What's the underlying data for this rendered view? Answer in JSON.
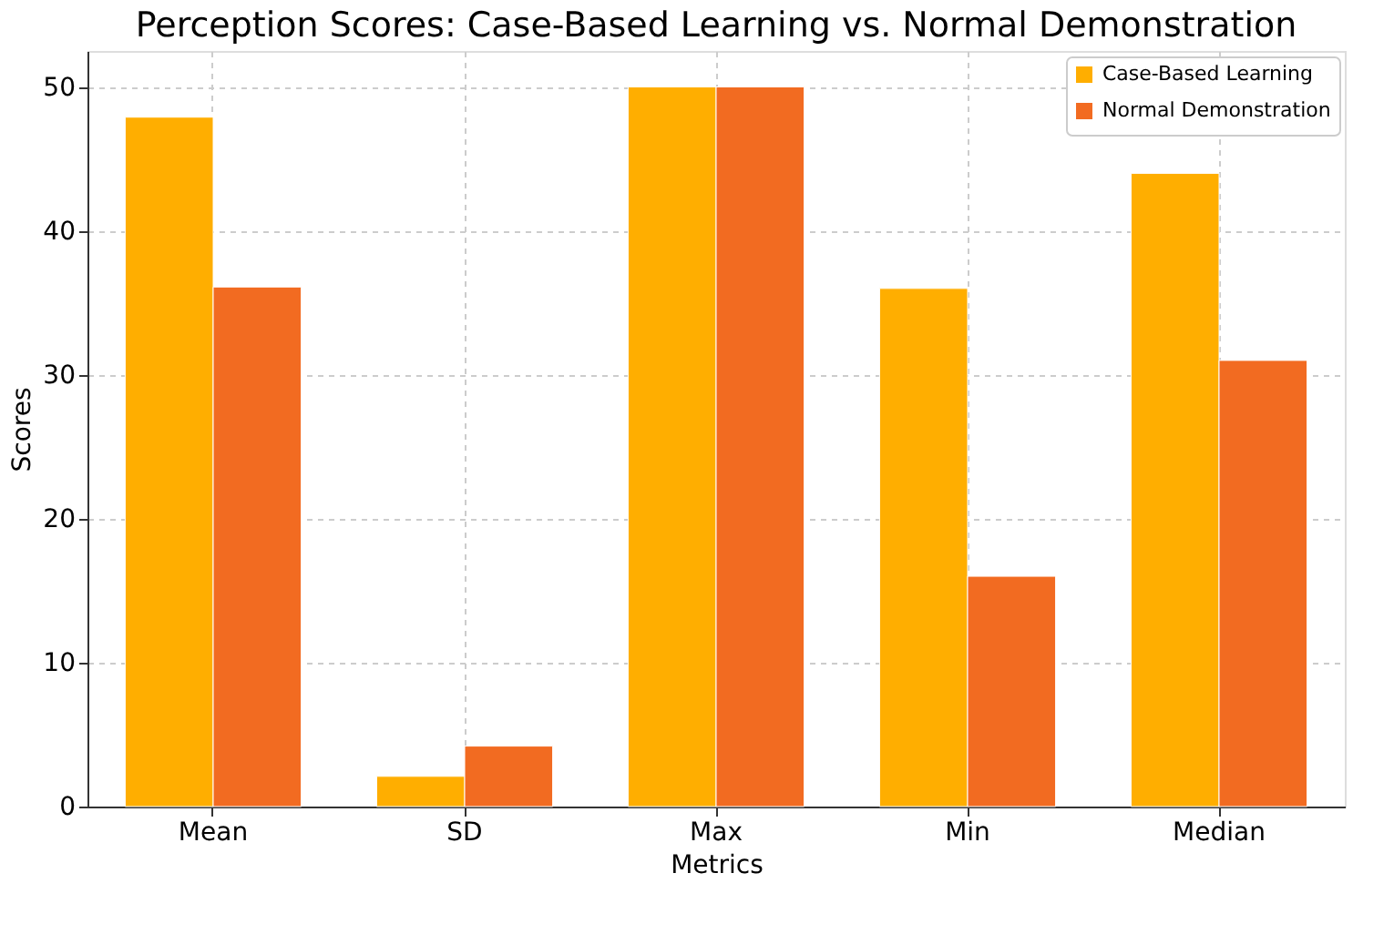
{
  "chart_data": {
    "type": "bar",
    "title": "Perception Scores: Case-Based Learning vs. Normal Demonstration",
    "xlabel": "Metrics",
    "ylabel": "Scores",
    "categories": [
      "Mean",
      "SD",
      "Max",
      "Min",
      "Median"
    ],
    "series": [
      {
        "name": "Case-Based Learning",
        "color": "#ffae00",
        "values": [
          47.9,
          2.1,
          50,
          36,
          44
        ]
      },
      {
        "name": "Normal Demonstration",
        "color": "#f26b21",
        "values": [
          36.1,
          4.2,
          50,
          16,
          31
        ]
      }
    ],
    "ylim": [
      0,
      52.5
    ],
    "yticks": [
      0,
      10,
      20,
      30,
      40,
      50
    ],
    "grid": true,
    "legend": "top right"
  }
}
